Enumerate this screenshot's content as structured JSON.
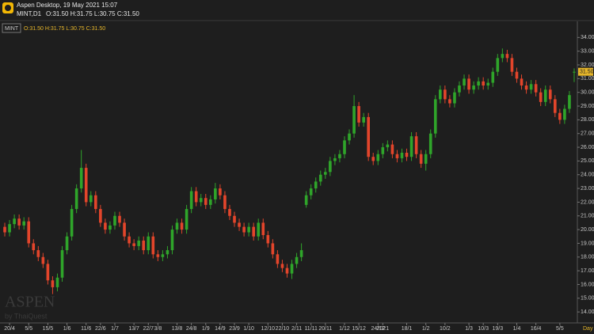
{
  "header": {
    "title": "Aspen Desktop, 19 May 2021 15:07",
    "symbol": "MINT,D1",
    "ohlc": "O:31.50 H:31.75 L:30.75 C:31.50"
  },
  "watermark": {
    "brand": "ASPEN",
    "by": "by ThaiQuest"
  },
  "chart_data": {
    "type": "candlestick",
    "categories": [
      null,
      "20/4",
      null,
      null,
      null,
      "5/5",
      null,
      null,
      null,
      "15/5",
      null,
      null,
      null,
      "1/6",
      null,
      null,
      null,
      "11/6",
      null,
      null,
      "22/6",
      null,
      null,
      "1/7",
      null,
      null,
      null,
      "13/7",
      null,
      null,
      "22/7",
      null,
      "3/8",
      null,
      null,
      null,
      "13/8",
      null,
      null,
      "24/8",
      null,
      null,
      "1/9",
      null,
      null,
      "14/9",
      null,
      null,
      "23/9",
      null,
      null,
      "1/10",
      null,
      null,
      null,
      "12/10",
      null,
      null,
      "22/10",
      null,
      null,
      "2/11",
      null,
      null,
      "11/11",
      null,
      null,
      "20/11",
      null,
      null,
      null,
      "1/12",
      null,
      null,
      "15/12",
      null,
      null,
      null,
      "24/12",
      "2021",
      null,
      null,
      null,
      null,
      "18/1",
      null,
      null,
      null,
      "1/2",
      null,
      null,
      null,
      "10/2",
      null,
      null,
      null,
      null,
      "1/3",
      null,
      null,
      "10/3",
      null,
      null,
      "19/3",
      null,
      null,
      null,
      "1/4",
      null,
      null,
      null,
      "16/4",
      null,
      null,
      null,
      null,
      "5/5",
      null,
      null,
      null
    ],
    "x_unit": "Day",
    "series": [
      {
        "name": "MINT",
        "up_color": "#2fa52a",
        "down_color": "#e3452b",
        "open": [
          20.2,
          19.8,
          20.4,
          20.8,
          20.3,
          20.6,
          19.0,
          18.5,
          18.0,
          17.5,
          16.3,
          15.8,
          16.5,
          18.5,
          19.5,
          21.5,
          23.0,
          24.5,
          22.0,
          22.5,
          21.5,
          20.5,
          20.0,
          20.3,
          21.0,
          20.5,
          19.5,
          19.0,
          18.8,
          19.2,
          18.5,
          19.5,
          18.2,
          18.0,
          18.2,
          18.5,
          20.0,
          20.5,
          20.0,
          21.5,
          22.8,
          22.0,
          22.3,
          21.8,
          22.2,
          23.0,
          22.5,
          21.5,
          21.0,
          20.5,
          20.2,
          19.8,
          20.2,
          19.5,
          20.5,
          19.6,
          19.0,
          18.2,
          17.5,
          17.2,
          16.8,
          17.5,
          18.0,
          21.8,
          22.5,
          23.0,
          23.5,
          24.0,
          24.2,
          25.0,
          25.2,
          25.5,
          26.5,
          27.0,
          29.0,
          27.8,
          28.2,
          25.3,
          25.0,
          25.5,
          26.0,
          26.2,
          25.5,
          25.2,
          25.6,
          25.3,
          26.8,
          25.5,
          24.8,
          25.5,
          27.0,
          29.5,
          30.2,
          29.5,
          29.2,
          30.0,
          30.5,
          31.0,
          30.2,
          30.5,
          30.8,
          30.5,
          30.7,
          31.5,
          32.5,
          32.8,
          32.5,
          31.5,
          31.0,
          30.5,
          30.2,
          30.6,
          30.0,
          29.3,
          30.2,
          29.5,
          28.5,
          28.0,
          28.8,
          31.5
        ],
        "high": [
          20.5,
          20.7,
          21.1,
          21.1,
          20.9,
          20.9,
          19.3,
          18.8,
          18.3,
          17.8,
          16.6,
          16.8,
          18.8,
          19.8,
          21.8,
          23.3,
          25.8,
          24.8,
          22.8,
          22.8,
          21.8,
          20.8,
          20.6,
          21.3,
          21.3,
          20.8,
          19.8,
          19.3,
          19.5,
          19.5,
          19.8,
          19.8,
          18.5,
          18.5,
          18.8,
          20.3,
          20.8,
          20.8,
          21.8,
          23.1,
          23.1,
          22.6,
          22.6,
          22.5,
          23.4,
          23.3,
          22.8,
          21.8,
          21.3,
          20.8,
          20.5,
          20.5,
          20.5,
          20.8,
          20.8,
          19.9,
          19.3,
          18.5,
          17.8,
          17.5,
          17.8,
          18.3,
          19.0,
          22.8,
          23.3,
          23.8,
          24.3,
          24.5,
          25.3,
          25.5,
          25.8,
          26.8,
          27.3,
          29.8,
          29.3,
          28.5,
          28.5,
          25.6,
          25.8,
          26.3,
          26.5,
          26.5,
          25.8,
          25.9,
          25.9,
          27.1,
          27.1,
          25.8,
          25.8,
          27.3,
          29.8,
          30.5,
          30.5,
          29.8,
          30.3,
          30.8,
          31.3,
          31.3,
          30.8,
          31.1,
          31.1,
          31.0,
          31.8,
          32.8,
          33.2,
          33.1,
          32.8,
          31.8,
          31.3,
          30.8,
          30.9,
          30.9,
          30.3,
          30.5,
          30.5,
          29.8,
          28.8,
          29.1,
          30.1,
          31.75
        ],
        "low": [
          19.5,
          19.5,
          20.1,
          20.0,
          20.0,
          18.7,
          18.2,
          17.7,
          17.2,
          16.0,
          15.3,
          15.5,
          16.2,
          18.2,
          19.2,
          21.2,
          22.7,
          21.7,
          21.7,
          21.2,
          20.2,
          19.7,
          19.7,
          20.0,
          20.2,
          19.2,
          18.7,
          18.5,
          18.5,
          18.2,
          18.2,
          17.9,
          17.7,
          17.7,
          17.9,
          18.2,
          19.7,
          19.7,
          19.7,
          21.2,
          21.7,
          21.7,
          21.5,
          21.5,
          21.9,
          22.2,
          21.2,
          20.7,
          20.2,
          19.9,
          19.5,
          19.5,
          19.2,
          19.2,
          19.3,
          18.7,
          17.9,
          17.2,
          16.9,
          16.5,
          16.4,
          17.2,
          17.7,
          21.6,
          22.2,
          22.7,
          23.2,
          23.7,
          23.9,
          24.7,
          24.9,
          25.2,
          26.2,
          26.7,
          27.5,
          27.5,
          25.0,
          24.7,
          24.7,
          25.2,
          25.7,
          25.2,
          24.9,
          24.9,
          25.0,
          25.0,
          25.2,
          24.5,
          24.3,
          25.2,
          26.7,
          29.2,
          29.2,
          28.9,
          28.9,
          29.7,
          30.2,
          29.9,
          29.9,
          30.2,
          30.2,
          30.2,
          30.4,
          31.2,
          32.2,
          32.2,
          31.2,
          30.7,
          30.2,
          29.9,
          29.9,
          29.7,
          29.0,
          29.0,
          29.2,
          28.2,
          27.7,
          27.7,
          28.5,
          30.75
        ],
        "close": [
          19.8,
          20.4,
          20.8,
          20.3,
          20.6,
          19.0,
          18.5,
          18.0,
          17.5,
          16.3,
          15.8,
          16.5,
          18.5,
          19.5,
          21.5,
          23.0,
          24.5,
          22.0,
          22.5,
          21.5,
          20.5,
          20.0,
          20.3,
          21.0,
          20.5,
          19.5,
          19.0,
          18.8,
          19.2,
          18.5,
          19.5,
          18.2,
          18.0,
          18.2,
          18.5,
          20.0,
          20.5,
          20.0,
          21.5,
          22.8,
          22.0,
          22.3,
          21.8,
          22.2,
          23.0,
          22.5,
          21.5,
          21.0,
          20.5,
          20.2,
          19.8,
          20.2,
          19.5,
          20.5,
          19.6,
          19.0,
          18.2,
          17.5,
          17.2,
          16.8,
          17.5,
          18.0,
          18.5,
          22.5,
          23.0,
          23.5,
          24.0,
          24.2,
          25.0,
          25.2,
          25.5,
          26.5,
          27.0,
          29.0,
          27.8,
          28.2,
          25.3,
          25.0,
          25.5,
          26.0,
          26.2,
          25.5,
          25.2,
          25.6,
          25.3,
          26.8,
          25.5,
          24.8,
          25.5,
          27.0,
          29.5,
          30.2,
          29.5,
          29.2,
          30.0,
          30.5,
          31.0,
          30.2,
          30.5,
          30.8,
          30.5,
          30.7,
          31.5,
          32.5,
          32.8,
          32.5,
          31.5,
          31.0,
          30.5,
          30.2,
          30.6,
          30.0,
          29.3,
          30.2,
          29.5,
          28.5,
          28.0,
          28.8,
          29.8,
          31.5
        ]
      }
    ],
    "price_marker": {
      "value": 31.5,
      "label": "31.50"
    },
    "ylim": [
      13.2,
      35.0
    ],
    "yticks": [
      {
        "value": 14,
        "label": "14.00"
      },
      {
        "value": 15,
        "label": "15.00"
      },
      {
        "value": 16,
        "label": "16.00"
      },
      {
        "value": 17,
        "label": "17.00"
      },
      {
        "value": 18,
        "label": "18.00"
      },
      {
        "value": 19,
        "label": "19.00"
      },
      {
        "value": 20,
        "label": "20.00"
      },
      {
        "value": 21,
        "label": "21.00"
      },
      {
        "value": 22,
        "label": "22.00"
      },
      {
        "value": 23,
        "label": "23.00"
      },
      {
        "value": 24,
        "label": "24.00"
      },
      {
        "value": 25,
        "label": "25.00"
      },
      {
        "value": 26,
        "label": "26.00"
      },
      {
        "value": 27,
        "label": "27.00"
      },
      {
        "value": 28,
        "label": "28.00"
      },
      {
        "value": 29,
        "label": "29.00"
      },
      {
        "value": 30,
        "label": "30.00"
      },
      {
        "value": 31,
        "label": "31.00"
      },
      {
        "value": 32,
        "label": "32.00"
      },
      {
        "value": 33,
        "label": "33.00"
      },
      {
        "value": 34,
        "label": "34.00"
      }
    ],
    "grid": false
  }
}
